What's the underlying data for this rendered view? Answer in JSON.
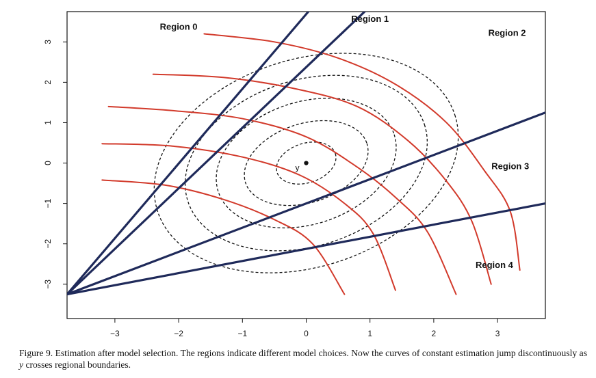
{
  "chart_data": {
    "type": "line",
    "title": "",
    "xlabel": "",
    "ylabel": "",
    "xlim": [
      -3.75,
      3.75
    ],
    "ylim": [
      -3.85,
      3.75
    ],
    "x_ticks": [
      -3,
      -2,
      -1,
      0,
      1,
      2,
      3
    ],
    "y_ticks": [
      -3,
      -2,
      -1,
      0,
      1,
      2,
      3
    ],
    "x_tick_labels": [
      "−3",
      "−2",
      "−1",
      "0",
      "1",
      "2",
      "3"
    ],
    "y_tick_labels": [
      "−3",
      "−2",
      "−1",
      "0",
      "1",
      "2",
      "3"
    ],
    "grid": false,
    "point": {
      "label": "y",
      "x": 0,
      "y": 0
    },
    "region_lines": {
      "origin": [
        -3.75,
        -3.25
      ],
      "slopes": [
        1.85,
        1.5,
        0.6,
        0.3
      ],
      "color": "#1f2a5a"
    },
    "contours": {
      "center": [
        0,
        0
      ],
      "angle_deg": 18,
      "semi_axes": [
        [
          0.48,
          0.2
        ],
        [
          1.0,
          0.4
        ],
        [
          1.45,
          0.62
        ],
        [
          1.95,
          0.84
        ],
        [
          2.45,
          1.05
        ]
      ],
      "color": "#111111"
    },
    "estimation_curves": {
      "color": "#d23a2b",
      "curves": [
        [
          [
            -1.6,
            3.2
          ],
          [
            -0.5,
            3.0
          ],
          [
            0.5,
            2.6
          ],
          [
            1.4,
            1.95
          ],
          [
            2.2,
            1.0
          ],
          [
            2.8,
            -0.2
          ],
          [
            3.2,
            -1.2
          ],
          [
            3.35,
            -2.65
          ]
        ],
        [
          [
            -2.4,
            2.2
          ],
          [
            -1.3,
            2.12
          ],
          [
            -0.2,
            1.85
          ],
          [
            0.8,
            1.4
          ],
          [
            1.6,
            0.55
          ],
          [
            2.2,
            -0.45
          ],
          [
            2.6,
            -1.45
          ],
          [
            2.9,
            -3.0
          ]
        ],
        [
          [
            -3.1,
            1.4
          ],
          [
            -2.1,
            1.3
          ],
          [
            -1.0,
            1.1
          ],
          [
            0.0,
            0.65
          ],
          [
            0.8,
            -0.1
          ],
          [
            1.4,
            -0.85
          ],
          [
            1.9,
            -1.7
          ],
          [
            2.35,
            -3.25
          ]
        ],
        [
          [
            -3.2,
            0.48
          ],
          [
            -2.1,
            0.42
          ],
          [
            -1.0,
            0.15
          ],
          [
            -0.1,
            -0.3
          ],
          [
            0.6,
            -1.0
          ],
          [
            1.05,
            -1.75
          ],
          [
            1.4,
            -3.15
          ]
        ],
        [
          [
            -3.2,
            -0.42
          ],
          [
            -2.2,
            -0.55
          ],
          [
            -1.3,
            -0.9
          ],
          [
            -0.5,
            -1.4
          ],
          [
            0.1,
            -2.0
          ],
          [
            0.6,
            -3.25
          ]
        ]
      ]
    },
    "region_labels": [
      {
        "text": "Region 0",
        "x": -2.0,
        "y": 3.3
      },
      {
        "text": "Region 1",
        "x": 1.0,
        "y": 3.5
      },
      {
        "text": "Region 2",
        "x": 3.15,
        "y": 3.15
      },
      {
        "text": "Region 3",
        "x": 3.2,
        "y": -0.15
      },
      {
        "text": "Region 4",
        "x": 2.95,
        "y": -2.6
      }
    ]
  },
  "caption": {
    "figure_label": "Figure 9.",
    "text_before": " Estimation after model selection. The regions indicate different model choices. Now the curves of constant estimation jump discontinuously as ",
    "variable": "y",
    "text_after": " crosses regional boundaries."
  }
}
